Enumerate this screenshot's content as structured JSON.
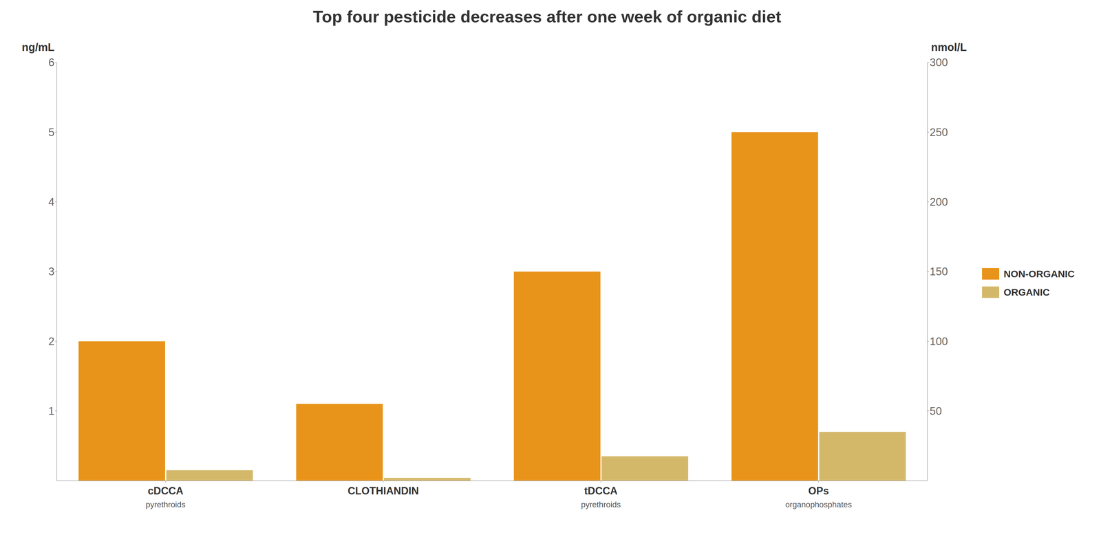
{
  "chart_data": {
    "type": "bar",
    "title": "Top four pesticide decreases after one week of organic diet",
    "ylabel": "ng/mL",
    "y2label": "nmol/L",
    "categories": [
      "cDCCA",
      "CLOTHIANDIN",
      "tDCCA",
      "OPs"
    ],
    "subcategories": [
      "pyrethroids",
      null,
      "pyrethroids",
      "organophosphates"
    ],
    "series": [
      {
        "name": "NON-ORGANIC",
        "color": "#E8941A",
        "values": [
          2.0,
          1.1,
          3.0,
          null
        ]
      },
      {
        "name": "ORGANIC",
        "color": "#D4B86A",
        "values": [
          0.15,
          0.04,
          0.35,
          null
        ]
      },
      {
        "name": "NON-ORGANIC",
        "color": "#E8941A",
        "axis": "y2",
        "values": [
          null,
          null,
          null,
          250
        ]
      },
      {
        "name": "ORGANIC",
        "color": "#D4B86A",
        "axis": "y2",
        "values": [
          null,
          null,
          null,
          35
        ]
      }
    ],
    "ylim": [
      0,
      6
    ],
    "yticks": [
      1,
      2,
      3,
      4,
      5,
      6
    ],
    "y2lim": [
      0,
      300
    ],
    "y2ticks": [
      50,
      100,
      150,
      200,
      250,
      300
    ],
    "grid": false
  }
}
